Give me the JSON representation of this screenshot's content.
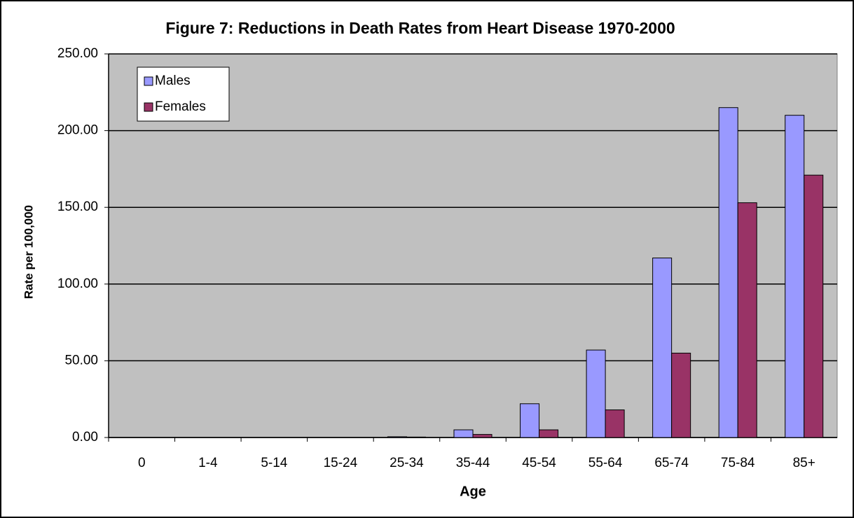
{
  "chart_data": {
    "type": "bar",
    "title": "Figure 7: Reductions in Death Rates from Heart Disease 1970-2000",
    "x_label": "Age",
    "y_label": "Rate per 100,000",
    "categories": [
      "0",
      "1-4",
      "5-14",
      "15-24",
      "25-34",
      "35-44",
      "45-54",
      "55-64",
      "65-74",
      "75-84",
      "85+"
    ],
    "series": [
      {
        "name": "Males",
        "color": "#9999ff",
        "values": [
          0,
          0,
          0,
          0,
          0.5,
          5,
          22,
          57,
          117,
          215,
          210
        ]
      },
      {
        "name": "Females",
        "color": "#993366",
        "values": [
          0,
          0,
          0,
          0,
          0.3,
          2,
          5,
          18,
          55,
          153,
          171
        ]
      }
    ],
    "ylim": [
      0,
      250
    ],
    "yticks": [
      {
        "value": 0,
        "label": "0.00"
      },
      {
        "value": 50,
        "label": "50.00"
      },
      {
        "value": 100,
        "label": "100.00"
      },
      {
        "value": 150,
        "label": "150.00"
      },
      {
        "value": 200,
        "label": "200.00"
      },
      {
        "value": 250,
        "label": "250.00"
      }
    ],
    "grid": true,
    "legend": "upper-left"
  }
}
